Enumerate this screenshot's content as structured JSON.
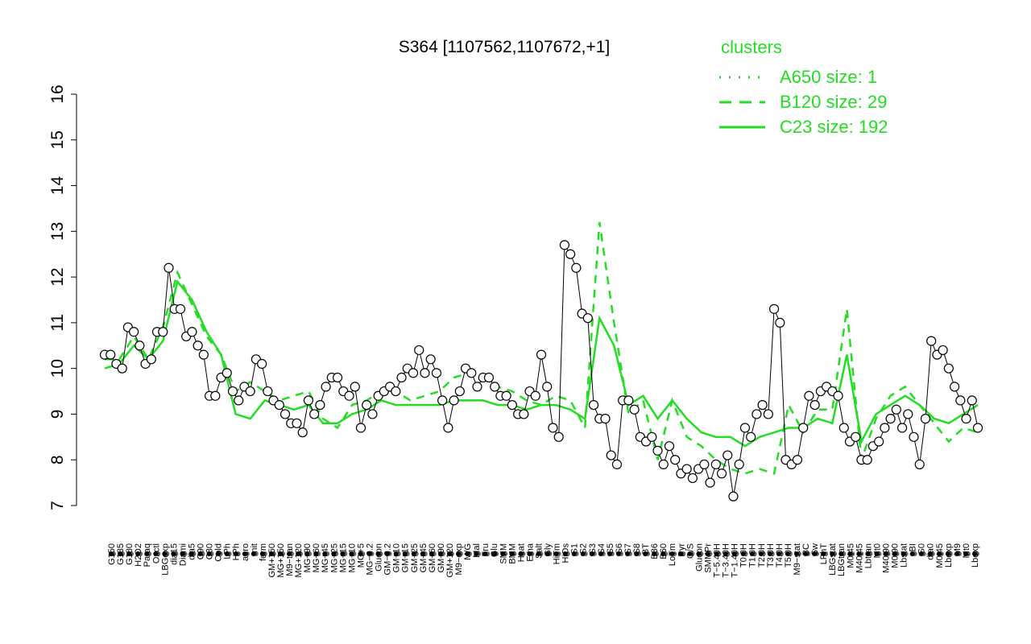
{
  "chart_data": {
    "type": "line",
    "title": "S364 [1107562,1107672,+1]",
    "xlabel": "",
    "ylabel": "",
    "ylim": [
      7,
      16
    ],
    "yticks": [
      7,
      8,
      9,
      10,
      11,
      12,
      13,
      14,
      15,
      16
    ],
    "grid": false,
    "legend": {
      "title": "clusters",
      "placement": "top-right",
      "entries": [
        {
          "label": "A650 size: 1",
          "style": "dotted"
        },
        {
          "label": "B120 size: 29",
          "style": "dashed"
        },
        {
          "label": "C23 size: 192",
          "style": "solid"
        }
      ]
    },
    "x_labels": [
      "G150",
      "G135",
      "G180",
      "H2O2",
      "Paraq",
      "Oxctl",
      "LBGexp",
      "dia15",
      "Diami",
      "dia5",
      "C90",
      "C30",
      "Cold",
      "LPh",
      "HPh",
      "aero",
      "nit",
      "ferm",
      "GM+150",
      "MG+150",
      "M9−tran",
      "MG+120",
      "MG+90",
      "MG+60",
      "MG+45",
      "MG+25",
      "MG+15",
      "MG+10",
      "MG+5",
      "MG−0.2",
      "Glucon",
      "GM−0.2",
      "GM+10",
      "GM+15",
      "GM+25",
      "GM+45",
      "GM+60",
      "GM+90",
      "GM+120",
      "M9−exp",
      "M/G",
      "Mal",
      "Fru",
      "Glu",
      "SMM",
      "BMM",
      "Heat",
      "Etha",
      "Salt",
      "Gly",
      "HiTm",
      "HiOs",
      "S1",
      "S2",
      "S3",
      "S4",
      "S5",
      "S6",
      "S7",
      "S8",
      "BT",
      "B36",
      "B60",
      "LoTm",
      "Pyr",
      "G/S",
      "Glucon",
      "SMMPr",
      "T−5.40H",
      "T−3.40H",
      "T−1.40H",
      "T0.0H",
      "T1.0H",
      "T2.0H",
      "T3.0H",
      "T4.0H",
      "T5.0H",
      "M9−stat",
      "BC",
      "Sw",
      "LPhT",
      "LBGstat",
      "LBGtran",
      "M0t45",
      "M40t45",
      "Lbtran",
      "Mt0",
      "M40t90",
      "M0t90",
      "Lbstat",
      "BI",
      "S0",
      "dia0",
      "M0t45",
      "Lbexp",
      "M9",
      "Mt0",
      "Lbexp"
    ],
    "series": [
      {
        "name": "A650 size: 1",
        "style": "dotted",
        "x": [],
        "values": []
      },
      {
        "name": "B120 size: 29",
        "style": "dashed",
        "x": [
          0,
          5,
          10,
          15,
          20,
          25,
          30,
          35,
          40,
          45,
          50,
          55,
          60,
          65,
          70,
          75,
          80,
          85,
          90,
          95,
          100,
          105,
          110,
          115,
          120,
          125,
          130,
          135,
          140,
          145,
          150,
          155,
          160,
          165,
          170,
          175,
          180,
          185,
          190,
          195,
          200,
          205,
          210,
          215,
          220,
          225,
          230,
          235,
          240,
          245,
          250,
          255,
          260,
          265,
          270,
          275,
          280,
          285,
          290,
          295,
          300
        ],
        "values": [
          10.2,
          10.2,
          10.7,
          10.2,
          10.9,
          12.1,
          11.4,
          10.7,
          10.3,
          9.5,
          9.7,
          9.5,
          9.3,
          9.4,
          9.5,
          8.9,
          8.7,
          9.2,
          9.3,
          9.5,
          9.5,
          9.3,
          9.4,
          9.5,
          9.8,
          9.9,
          9.8,
          9.6,
          9.5,
          9.3,
          9.2,
          9.4,
          9.3,
          8.7,
          13.2,
          11.0,
          9.0,
          9.3,
          8.0,
          9.3,
          8.5,
          8.3,
          8.0,
          7.8,
          7.7,
          7.8,
          7.7,
          9.2,
          8.6,
          9.1,
          9.1,
          11.3,
          8.0,
          8.9,
          9.4,
          9.6,
          9.2,
          8.8,
          8.4,
          8.7,
          8.6
        ]
      },
      {
        "name": "C23 size: 192",
        "style": "solid",
        "x": [
          0,
          5,
          10,
          15,
          20,
          25,
          30,
          35,
          40,
          45,
          50,
          55,
          60,
          65,
          70,
          75,
          80,
          85,
          90,
          95,
          100,
          105,
          110,
          115,
          120,
          125,
          130,
          135,
          140,
          145,
          150,
          155,
          160,
          165,
          170,
          175,
          180,
          185,
          190,
          195,
          200,
          205,
          210,
          215,
          220,
          225,
          230,
          235,
          240,
          245,
          250,
          255,
          260,
          265,
          270,
          275,
          280,
          285,
          290,
          295,
          300
        ],
        "values": [
          10.0,
          10.1,
          10.5,
          10.2,
          10.6,
          11.9,
          11.5,
          10.8,
          10.3,
          9.0,
          8.9,
          9.3,
          9.2,
          9.1,
          9.2,
          8.8,
          8.8,
          9.0,
          9.1,
          9.3,
          9.2,
          9.2,
          9.2,
          9.2,
          9.3,
          9.3,
          9.3,
          9.2,
          9.2,
          9.1,
          9.2,
          9.2,
          9.1,
          8.9,
          11.1,
          10.5,
          9.2,
          9.4,
          8.9,
          9.3,
          8.9,
          8.6,
          8.5,
          8.5,
          8.3,
          8.5,
          8.6,
          8.7,
          8.7,
          8.9,
          8.8,
          10.3,
          8.4,
          9.0,
          9.2,
          9.4,
          9.2,
          8.9,
          8.8,
          9.0,
          9.2
        ]
      }
    ],
    "points": {
      "x": [
        0,
        2,
        4,
        6,
        8,
        10,
        12,
        14,
        16,
        18,
        20,
        22,
        24,
        26,
        28,
        30,
        32,
        34,
        36,
        38,
        40,
        42,
        44,
        46,
        48,
        50,
        52,
        54,
        56,
        58,
        60,
        62,
        64,
        66,
        68,
        70,
        72,
        74,
        76,
        78,
        80,
        82,
        84,
        86,
        88,
        90,
        92,
        94,
        96,
        98,
        100,
        102,
        104,
        106,
        108,
        110,
        112,
        114,
        116,
        118,
        120,
        122,
        124,
        126,
        128,
        130,
        132,
        134,
        136,
        138,
        140,
        142,
        144,
        146,
        148,
        150,
        152,
        154,
        156,
        158,
        160,
        162,
        164,
        166,
        168,
        170,
        172,
        174,
        176,
        178,
        180,
        182,
        184,
        186,
        188,
        190,
        192,
        194,
        196,
        198,
        200,
        202,
        204,
        206,
        208,
        210,
        212,
        214,
        216,
        218,
        220,
        222,
        224,
        226,
        228,
        230,
        232,
        234,
        236,
        238,
        240,
        242,
        244,
        246,
        248,
        250,
        252,
        254,
        256,
        258,
        260,
        262,
        264,
        266,
        268,
        270,
        272,
        274,
        276,
        278,
        280,
        282,
        284,
        286,
        288,
        290,
        292,
        294,
        296,
        298,
        300
      ],
      "values": [
        10.3,
        10.3,
        10.1,
        10.0,
        10.9,
        10.8,
        10.5,
        10.1,
        10.2,
        10.8,
        10.8,
        12.2,
        11.3,
        11.3,
        10.7,
        10.8,
        10.5,
        10.3,
        9.4,
        9.4,
        9.8,
        9.9,
        9.5,
        9.3,
        9.6,
        9.5,
        10.2,
        10.1,
        9.5,
        9.3,
        9.2,
        9.0,
        8.8,
        8.8,
        8.6,
        9.3,
        9.0,
        9.2,
        9.6,
        9.8,
        9.8,
        9.5,
        9.4,
        9.6,
        8.7,
        9.2,
        9.0,
        9.4,
        9.5,
        9.6,
        9.5,
        9.8,
        10.0,
        9.9,
        10.4,
        9.9,
        10.2,
        9.9,
        9.3,
        8.7,
        9.3,
        9.5,
        10.0,
        9.9,
        9.6,
        9.8,
        9.8,
        9.6,
        9.4,
        9.4,
        9.2,
        9.0,
        9.0,
        9.5,
        9.4,
        10.3,
        9.6,
        8.7,
        8.5,
        12.7,
        12.5,
        12.2,
        11.2,
        11.1,
        9.2,
        8.9,
        8.9,
        8.1,
        7.9,
        9.3,
        9.3,
        9.1,
        8.5,
        8.4,
        8.5,
        8.2,
        7.9,
        8.3,
        8.0,
        7.7,
        7.8,
        7.6,
        7.8,
        7.9,
        7.5,
        7.9,
        7.7,
        8.1,
        7.2,
        7.9,
        8.7,
        8.5,
        9.0,
        9.2,
        9.0,
        11.3,
        11.0,
        8.0,
        7.9,
        8.0,
        8.7,
        9.4,
        9.2,
        9.5,
        9.6,
        9.5,
        9.4,
        8.7,
        8.4,
        8.5,
        8.0,
        8.0,
        8.3,
        8.4,
        8.7,
        8.9,
        9.1,
        8.7,
        9.0,
        8.5,
        7.9,
        8.9,
        10.6,
        10.3,
        10.4,
        10.0,
        9.6,
        9.3,
        8.9,
        9.3,
        8.7
      ]
    }
  }
}
